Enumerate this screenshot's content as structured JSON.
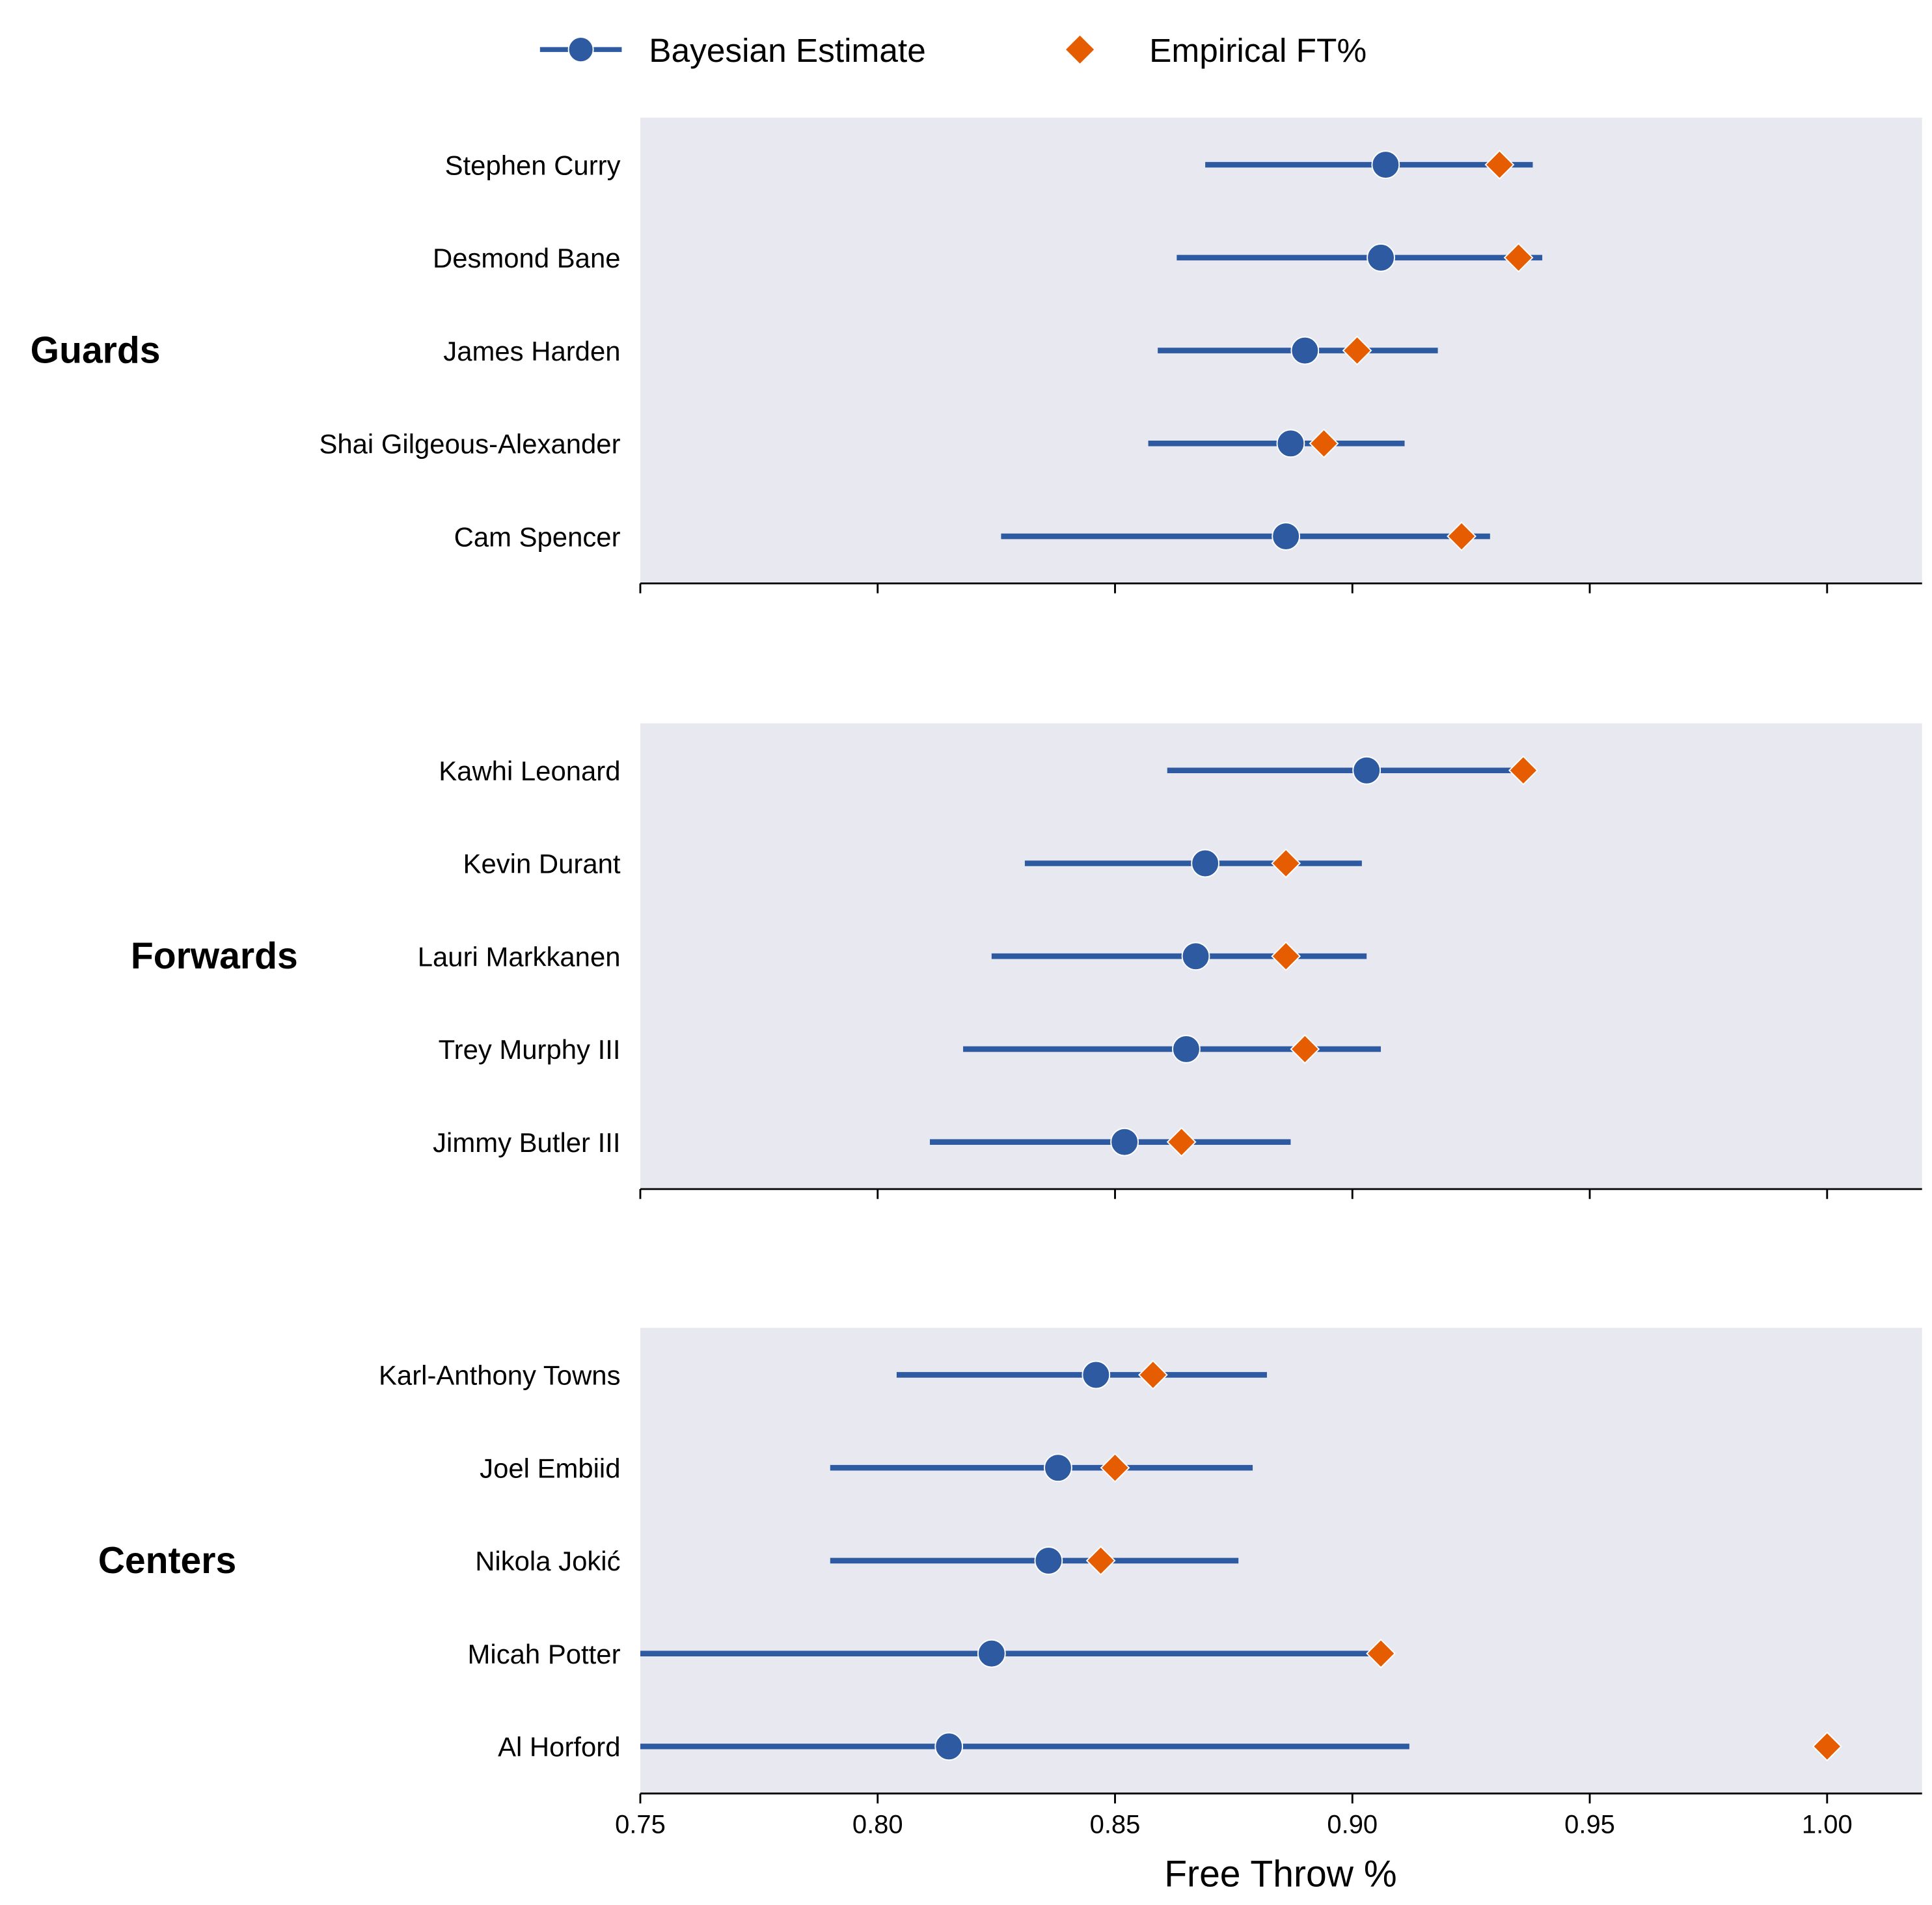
{
  "chart_data": {
    "type": "scatter",
    "subtype": "dot-and-interval",
    "xlabel": "Free Throw %",
    "xlim": [
      0.75,
      1.02
    ],
    "xticks": [
      "0.75",
      "0.80",
      "0.85",
      "0.90",
      "0.95",
      "1.00"
    ],
    "legend": {
      "placement": "top-center",
      "entries": [
        "Bayesian Estimate",
        "Empirical FT%"
      ]
    },
    "colors": {
      "bayesian": "#2d5aa0",
      "empirical": "#e65c00",
      "panel_bg": "#e8e8f0"
    },
    "groups": [
      {
        "name": "Guards",
        "players": [
          {
            "name": "Stephen Curry",
            "low": 0.869,
            "mean": 0.907,
            "high": 0.938,
            "empirical": 0.931
          },
          {
            "name": "Desmond Bane",
            "low": 0.863,
            "mean": 0.906,
            "high": 0.94,
            "empirical": 0.935
          },
          {
            "name": "James Harden",
            "low": 0.859,
            "mean": 0.89,
            "high": 0.918,
            "empirical": 0.901
          },
          {
            "name": "Shai Gilgeous-Alexander",
            "low": 0.857,
            "mean": 0.887,
            "high": 0.911,
            "empirical": 0.894
          },
          {
            "name": "Cam Spencer",
            "low": 0.826,
            "mean": 0.886,
            "high": 0.929,
            "empirical": 0.923
          }
        ]
      },
      {
        "name": "Forwards",
        "players": [
          {
            "name": "Kawhi Leonard",
            "low": 0.861,
            "mean": 0.903,
            "high": 0.936,
            "empirical": 0.936
          },
          {
            "name": "Kevin Durant",
            "low": 0.831,
            "mean": 0.869,
            "high": 0.902,
            "empirical": 0.886
          },
          {
            "name": "Lauri Markkanen",
            "low": 0.824,
            "mean": 0.867,
            "high": 0.903,
            "empirical": 0.886
          },
          {
            "name": "Trey Murphy III",
            "low": 0.818,
            "mean": 0.865,
            "high": 0.906,
            "empirical": 0.89
          },
          {
            "name": "Jimmy Butler III",
            "low": 0.811,
            "mean": 0.852,
            "high": 0.887,
            "empirical": 0.864
          }
        ]
      },
      {
        "name": "Centers",
        "players": [
          {
            "name": "Karl-Anthony Towns",
            "low": 0.804,
            "mean": 0.846,
            "high": 0.882,
            "empirical": 0.858
          },
          {
            "name": "Joel Embiid",
            "low": 0.79,
            "mean": 0.838,
            "high": 0.879,
            "empirical": 0.85
          },
          {
            "name": "Nikola Jokić",
            "low": 0.79,
            "mean": 0.836,
            "high": 0.876,
            "empirical": 0.847
          },
          {
            "name": "Micah Potter",
            "low": 0.74,
            "mean": 0.824,
            "high": 0.906,
            "empirical": 0.906
          },
          {
            "name": "Al Horford",
            "low": 0.73,
            "mean": 0.815,
            "high": 0.912,
            "empirical": 1.0
          }
        ]
      }
    ]
  }
}
